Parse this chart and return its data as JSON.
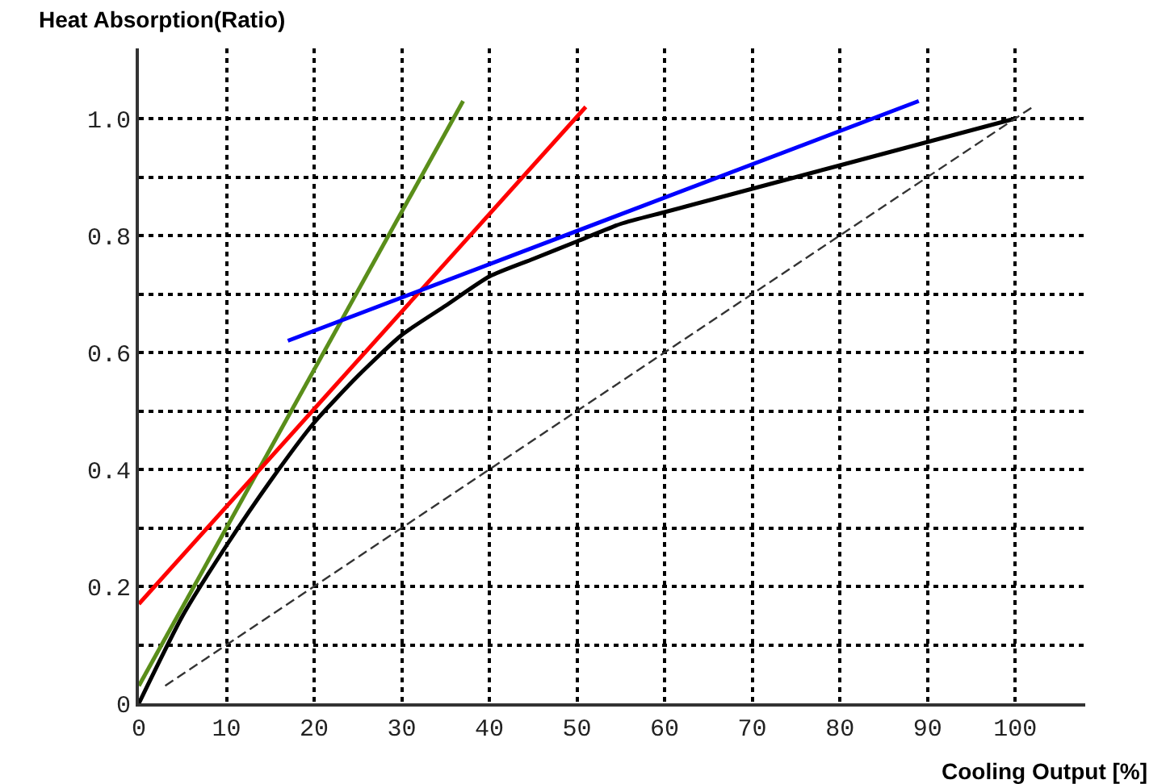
{
  "chart_data": {
    "type": "line",
    "xlabel": "Cooling Output [%]",
    "ylabel": "Heat Absorption(Ratio)",
    "xlim": [
      0,
      108
    ],
    "ylim": [
      0,
      1.12
    ],
    "xticks": [
      0,
      10,
      20,
      30,
      40,
      50,
      60,
      70,
      80,
      90,
      100
    ],
    "yticks": [
      0,
      {
        "value": 0.1,
        "label": null
      },
      0.2,
      {
        "value": 0.3,
        "label": null
      },
      0.4,
      {
        "value": 0.5,
        "label": null
      },
      0.6,
      {
        "value": 0.7,
        "label": null
      },
      0.8,
      {
        "value": 0.9,
        "label": null
      },
      {
        "value": 1,
        "label": "1.0"
      }
    ],
    "grid": true,
    "marker": "none",
    "series": [
      {
        "color": "#000000",
        "x": [
          0,
          5,
          10,
          15,
          20,
          25,
          30,
          35,
          40,
          45,
          50,
          55,
          60,
          65,
          70,
          75,
          80,
          85,
          90,
          95,
          100
        ],
        "values": [
          0,
          0.15,
          0.27,
          0.38,
          0.48,
          0.56,
          0.63,
          0.68,
          0.73,
          0.76,
          0.79,
          0.82,
          0.84,
          0.86,
          0.88,
          0.9,
          0.92,
          0.94,
          0.96,
          0.98,
          1.0
        ]
      },
      {
        "color": "#5a8e1a",
        "x": [
          0,
          37
        ],
        "values": [
          0.03,
          1.03
        ]
      },
      {
        "color": "#ff0000",
        "x": [
          0,
          51
        ],
        "values": [
          0.17,
          1.02
        ]
      },
      {
        "color": "#0000ff",
        "x": [
          17,
          89
        ],
        "values": [
          0.62,
          1.03
        ]
      },
      {
        "color": "#333333",
        "line_style": "dashed",
        "x": [
          3,
          102
        ],
        "values": [
          0.03,
          1.02
        ]
      }
    ]
  }
}
